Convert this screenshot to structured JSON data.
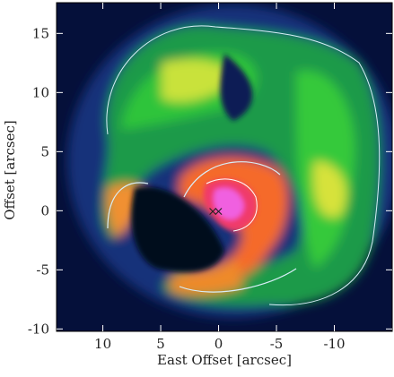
{
  "chart_data": {
    "type": "image",
    "xlabel": "East Offset [arcsec]",
    "ylabel": "Offset [arcsec]",
    "xlim": [
      14,
      -15
    ],
    "ylim": [
      -10.2,
      17.6
    ],
    "xticks": [
      10,
      5,
      0,
      -5,
      -10
    ],
    "yticks": [
      -10,
      -5,
      0,
      5,
      10,
      15
    ],
    "markers": {
      "x": [
        0.5,
        0
      ],
      "y": [
        0,
        0
      ],
      "symbol": "×",
      "color": "#222222"
    }
  }
}
